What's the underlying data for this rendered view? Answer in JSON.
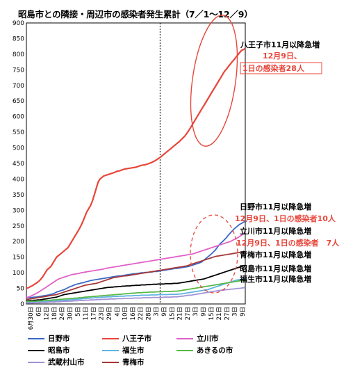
{
  "chart_data": {
    "type": "line",
    "title": "昭島市との隣接・周辺市の感染者発生累計（7／1～12／9）",
    "ylim": [
      0,
      900
    ],
    "yticks": [
      0,
      50,
      100,
      150,
      200,
      250,
      300,
      350,
      400,
      450,
      500,
      550,
      600,
      650,
      700,
      750,
      800,
      850,
      900
    ],
    "x_tick_labels": [
      "6月30日",
      "6日",
      "12日",
      "18日",
      "24日",
      "30日",
      "5日",
      "11日",
      "17日",
      "23日",
      "29日",
      "4日",
      "10日",
      "16日",
      "22日",
      "28日",
      "3日",
      "9日",
      "15日",
      "21日",
      "27日",
      "3日",
      "9日",
      "15日",
      "21日",
      "27日",
      "3日",
      "9日"
    ],
    "x": [
      0,
      10,
      20,
      30,
      40,
      50,
      60,
      70,
      80,
      90,
      100,
      110,
      120,
      130,
      140,
      150,
      160,
      170,
      180,
      190,
      200,
      210,
      220,
      230,
      240,
      250,
      260,
      270,
      280,
      290,
      300,
      310,
      320,
      330,
      340,
      350,
      360,
      370,
      380,
      390,
      400,
      410,
      420,
      430,
      440,
      450,
      460,
      470,
      480,
      490,
      500,
      510,
      520,
      530,
      540,
      550,
      560,
      570,
      580,
      590,
      600,
      610,
      620,
      630,
      640,
      650,
      660,
      670,
      680,
      690,
      700,
      710,
      720,
      730,
      740,
      750,
      760,
      770,
      780,
      790,
      800,
      810,
      820,
      830,
      840,
      850,
      860,
      870,
      880,
      890,
      900,
      910,
      920,
      930,
      940,
      950,
      960,
      970,
      980,
      990,
      1000,
      1010,
      1020,
      1030,
      1040,
      1050,
      1060,
      1070,
      1080,
      1090,
      1100,
      1110,
      1120,
      1130,
      1140,
      1150,
      1160
    ],
    "marker_label": "11月1日",
    "series": [
      {
        "name": "日野市",
        "color": "#3a68c4",
        "values": [
          20,
          20,
          21,
          21,
          22,
          22,
          23,
          24,
          25,
          26,
          27,
          28,
          29,
          31,
          32,
          35,
          38,
          40,
          42,
          44,
          46,
          49,
          52,
          55,
          57,
          60,
          62,
          64,
          65,
          67,
          68,
          70,
          72,
          73,
          75,
          76,
          77,
          78,
          79,
          80,
          81,
          82,
          83,
          84,
          85,
          86,
          87,
          88,
          89,
          90,
          90,
          91,
          92,
          93,
          94,
          95,
          96,
          97,
          97,
          98,
          99,
          100,
          100,
          101,
          101,
          102,
          102,
          103,
          104,
          104,
          105,
          106,
          107,
          108,
          109,
          110,
          111,
          112,
          113,
          114,
          114,
          115,
          116,
          117,
          118,
          119,
          120,
          122,
          124,
          126,
          128,
          130,
          132,
          135,
          140,
          145,
          150,
          155,
          160,
          166,
          172,
          180,
          188,
          195,
          200,
          206,
          212,
          220,
          227,
          233,
          240,
          245,
          250,
          255,
          258,
          262,
          265
        ]
      },
      {
        "name": "八王子市",
        "color": "#e8463a",
        "values": [
          50,
          52,
          55,
          58,
          62,
          66,
          70,
          75,
          82,
          90,
          100,
          110,
          115,
          120,
          130,
          140,
          150,
          155,
          160,
          165,
          170,
          175,
          180,
          190,
          200,
          210,
          220,
          230,
          240,
          252,
          265,
          280,
          295,
          305,
          315,
          330,
          350,
          370,
          390,
          400,
          405,
          410,
          412,
          414,
          416,
          418,
          420,
          422,
          425,
          426,
          428,
          430,
          432,
          433,
          434,
          435,
          436,
          437,
          438,
          440,
          442,
          444,
          445,
          446,
          448,
          450,
          452,
          455,
          458,
          462,
          466,
          470,
          475,
          480,
          485,
          490,
          495,
          500,
          505,
          510,
          515,
          520,
          526,
          532,
          538,
          546,
          555,
          565,
          575,
          585,
          595,
          605,
          615,
          625,
          635,
          645,
          655,
          665,
          675,
          685,
          695,
          705,
          715,
          725,
          735,
          745,
          752,
          760,
          768,
          775,
          782,
          790,
          797,
          805,
          812,
          815,
          818
        ]
      },
      {
        "name": "立川市",
        "color": "#e060c8",
        "values": [
          21,
          22,
          24,
          27,
          30,
          33,
          36,
          40,
          44,
          48,
          52,
          56,
          60,
          64,
          68,
          72,
          76,
          80,
          82,
          84,
          86,
          88,
          90,
          92,
          94,
          95,
          96,
          97,
          98,
          100,
          101,
          102,
          103,
          104,
          105,
          106,
          107,
          108,
          109,
          110,
          111,
          112,
          114,
          115,
          116,
          117,
          118,
          119,
          120,
          121,
          122,
          123,
          124,
          125,
          126,
          127,
          128,
          129,
          130,
          131,
          132,
          133,
          134,
          135,
          136,
          137,
          138,
          139,
          140,
          141,
          142,
          143,
          144,
          145,
          146,
          147,
          148,
          149,
          150,
          151,
          152,
          153,
          154,
          155,
          156,
          157,
          158,
          159,
          160,
          162,
          164,
          166,
          168,
          170,
          172,
          174,
          176,
          178,
          180,
          182,
          184,
          186,
          188,
          190,
          192,
          194,
          196,
          198,
          200,
          203,
          206,
          209,
          212,
          216,
          220,
          225,
          230
        ]
      },
      {
        "name": "昭島市",
        "color": "#000000",
        "values": [
          10,
          10,
          11,
          11,
          12,
          12,
          13,
          13,
          14,
          15,
          16,
          17,
          18,
          19,
          20,
          21,
          22,
          24,
          26,
          28,
          30,
          31,
          32,
          33,
          34,
          35,
          36,
          37,
          38,
          39,
          40,
          41,
          42,
          43,
          44,
          45,
          46,
          47,
          48,
          49,
          50,
          51,
          52,
          53,
          53,
          54,
          54,
          55,
          55,
          56,
          56,
          57,
          57,
          58,
          58,
          58,
          59,
          59,
          60,
          60,
          60,
          61,
          61,
          61,
          62,
          62,
          62,
          63,
          63,
          63,
          64,
          64,
          64,
          64,
          65,
          65,
          65,
          65,
          66,
          66,
          66,
          67,
          68,
          69,
          70,
          71,
          72,
          73,
          74,
          75,
          76,
          77,
          78,
          79,
          80,
          82,
          84,
          86,
          88,
          90,
          92,
          94,
          96,
          98,
          100,
          102,
          104,
          106,
          108,
          110,
          112,
          114,
          116,
          118,
          120,
          122,
          124
        ]
      },
      {
        "name": "福生市",
        "color": "#5fb3e0",
        "values": [
          5,
          5,
          5,
          5,
          6,
          6,
          6,
          6,
          7,
          7,
          7,
          8,
          8,
          8,
          9,
          9,
          10,
          10,
          11,
          11,
          12,
          12,
          13,
          13,
          14,
          14,
          15,
          15,
          16,
          16,
          17,
          17,
          18,
          18,
          19,
          19,
          20,
          20,
          21,
          21,
          22,
          22,
          22,
          23,
          23,
          23,
          24,
          24,
          24,
          25,
          25,
          25,
          25,
          26,
          26,
          26,
          26,
          27,
          27,
          27,
          27,
          28,
          28,
          28,
          28,
          28,
          29,
          29,
          29,
          29,
          30,
          30,
          30,
          30,
          30,
          30,
          31,
          31,
          31,
          31,
          31,
          32,
          32,
          33,
          34,
          35,
          36,
          37,
          38,
          39,
          40,
          41,
          42,
          43,
          44,
          45,
          46,
          48,
          50,
          52,
          54,
          56,
          58,
          60,
          62,
          64,
          66,
          68,
          70,
          72,
          74,
          76,
          77,
          78,
          79,
          80,
          80
        ]
      },
      {
        "name": "あきるの市",
        "color": "#58b848",
        "values": [
          8,
          8,
          8,
          9,
          9,
          9,
          10,
          10,
          10,
          11,
          11,
          12,
          12,
          12,
          13,
          13,
          14,
          14,
          15,
          15,
          16,
          16,
          17,
          17,
          18,
          18,
          19,
          19,
          20,
          20,
          21,
          22,
          22,
          23,
          23,
          24,
          24,
          25,
          25,
          26,
          26,
          27,
          27,
          28,
          28,
          29,
          29,
          30,
          30,
          31,
          31,
          32,
          32,
          33,
          33,
          34,
          34,
          35,
          35,
          36,
          36,
          36,
          37,
          37,
          37,
          38,
          38,
          38,
          38,
          39,
          39,
          39,
          39,
          40,
          40,
          40,
          40,
          40,
          41,
          41,
          41,
          42,
          43,
          44,
          45,
          46,
          47,
          48,
          49,
          50,
          51,
          52,
          53,
          54,
          55,
          56,
          57,
          58,
          59,
          60,
          61,
          62,
          63,
          64,
          65,
          66,
          67,
          68,
          69,
          70,
          71,
          72,
          73,
          74,
          75,
          76,
          77
        ]
      },
      {
        "name": "武蔵村山市",
        "color": "#a392d6",
        "values": [
          3,
          3,
          3,
          3,
          4,
          4,
          4,
          4,
          5,
          5,
          5,
          5,
          6,
          6,
          6,
          6,
          7,
          7,
          7,
          8,
          8,
          8,
          9,
          9,
          9,
          10,
          10,
          10,
          11,
          11,
          11,
          12,
          12,
          12,
          13,
          13,
          13,
          14,
          14,
          14,
          15,
          15,
          15,
          15,
          16,
          16,
          16,
          16,
          17,
          17,
          17,
          17,
          18,
          18,
          18,
          18,
          18,
          19,
          19,
          19,
          19,
          19,
          20,
          20,
          20,
          20,
          20,
          21,
          21,
          21,
          21,
          21,
          21,
          22,
          22,
          22,
          22,
          22,
          23,
          23,
          23,
          24,
          25,
          25,
          26,
          27,
          28,
          28,
          29,
          30,
          31,
          32,
          33,
          34,
          35,
          36,
          37,
          38,
          39,
          40,
          41,
          42,
          43,
          44,
          44,
          45,
          46,
          46,
          47,
          48,
          48,
          49,
          50,
          50,
          51,
          52,
          52
        ]
      },
      {
        "name": "青梅市",
        "color": "#a63838",
        "values": [
          15,
          15,
          16,
          17,
          18,
          19,
          20,
          21,
          22,
          23,
          24,
          25,
          26,
          27,
          28,
          29,
          30,
          32,
          34,
          36,
          38,
          40,
          42,
          44,
          46,
          48,
          50,
          52,
          54,
          56,
          58,
          60,
          61,
          62,
          63,
          64,
          65,
          66,
          68,
          70,
          72,
          74,
          76,
          78,
          80,
          82,
          84,
          85,
          86,
          87,
          88,
          89,
          90,
          90,
          91,
          92,
          93,
          94,
          95,
          96,
          97,
          98,
          99,
          100,
          101,
          102,
          103,
          104,
          105,
          106,
          107,
          108,
          109,
          110,
          111,
          112,
          113,
          114,
          115,
          116,
          117,
          118,
          119,
          120,
          121,
          122,
          124,
          126,
          128,
          130,
          132,
          134,
          136,
          138,
          140,
          142,
          144,
          146,
          148,
          150,
          152,
          153,
          154,
          155,
          156,
          157,
          158,
          159,
          160,
          161,
          162,
          163,
          164,
          165,
          166,
          167,
          168
        ]
      }
    ],
    "annotations": [
      {
        "text": "八王子市11月以降急増",
        "color": "#000000"
      },
      {
        "text": "12月9日、",
        "color": "#e8463a"
      },
      {
        "text": "1日の感染者28人",
        "color": "#e8463a"
      },
      {
        "text": "日野市11月以降急増",
        "color": "#000000"
      },
      {
        "text": "12月9日、1日の感染者10人",
        "color": "#e8463a"
      },
      {
        "text": "立川市11月以降急増",
        "color": "#000000"
      },
      {
        "text": "12月9日、1日の感染者　7人",
        "color": "#e8463a"
      },
      {
        "text": "青梅市11月以降急増",
        "color": "#000000"
      },
      {
        "text": "昭島市11月以降急増",
        "color": "#000000"
      },
      {
        "text": "福生市11月以降急増",
        "color": "#000000"
      }
    ],
    "legend_position": "bottom",
    "legend": [
      "日野市",
      "八王子市",
      "立川市",
      "昭島市",
      "福生市",
      "あきるの市",
      "武蔵村山市",
      "青梅市"
    ]
  }
}
